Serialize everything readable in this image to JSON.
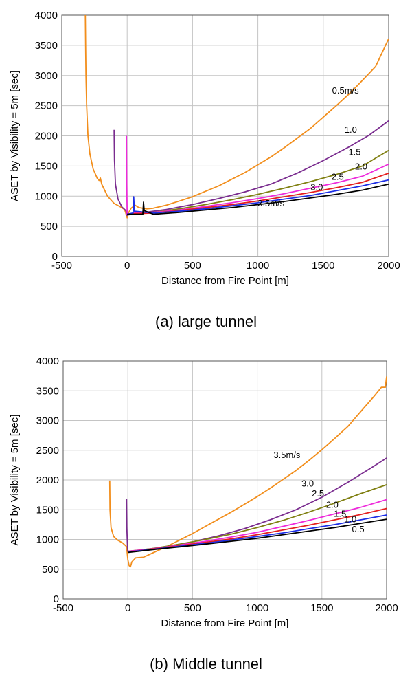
{
  "chart_data": [
    {
      "type": "line",
      "caption": "(a)  large  tunnel",
      "xlabel": "Distance from Fire Point [m]",
      "ylabel": "ASET by Visibility = 5m [sec]",
      "xlim": [
        -500,
        2000
      ],
      "ylim": [
        0,
        4000
      ],
      "xticks": [
        "-500",
        "0",
        "500",
        "1000",
        "1500",
        "2000"
      ],
      "yticks": [
        "0",
        "500",
        "1000",
        "1500",
        "2000",
        "2500",
        "3000",
        "3500",
        "4000"
      ],
      "grid": true,
      "series": [
        {
          "name": "0.5m/s",
          "color": "#f28e1c",
          "points": [
            [
              -320,
              4000
            ],
            [
              -318,
              3500
            ],
            [
              -315,
              3000
            ],
            [
              -310,
              2500
            ],
            [
              -300,
              2000
            ],
            [
              -285,
              1700
            ],
            [
              -260,
              1450
            ],
            [
              -230,
              1300
            ],
            [
              -215,
              1260
            ],
            [
              -205,
              1300
            ],
            [
              -195,
              1200
            ],
            [
              -150,
              1000
            ],
            [
              -100,
              880
            ],
            [
              -50,
              820
            ],
            [
              -20,
              780
            ],
            [
              -8,
              700
            ],
            [
              0,
              640
            ],
            [
              10,
              720
            ],
            [
              30,
              800
            ],
            [
              60,
              850
            ],
            [
              90,
              810
            ],
            [
              150,
              790
            ],
            [
              200,
              800
            ],
            [
              300,
              850
            ],
            [
              400,
              920
            ],
            [
              500,
              990
            ],
            [
              600,
              1080
            ],
            [
              700,
              1170
            ],
            [
              800,
              1280
            ],
            [
              900,
              1390
            ],
            [
              1000,
              1520
            ],
            [
              1100,
              1650
            ],
            [
              1200,
              1800
            ],
            [
              1300,
              1960
            ],
            [
              1400,
              2120
            ],
            [
              1500,
              2310
            ],
            [
              1600,
              2500
            ],
            [
              1700,
              2700
            ],
            [
              1800,
              2920
            ],
            [
              1900,
              3150
            ],
            [
              2000,
              3610
            ]
          ]
        },
        {
          "name": "1.0",
          "color": "#7a2c8f",
          "points": [
            [
              -100,
              2100
            ],
            [
              -97,
              1600
            ],
            [
              -90,
              1200
            ],
            [
              -70,
              950
            ],
            [
              -40,
              820
            ],
            [
              -10,
              760
            ],
            [
              0,
              680
            ],
            [
              20,
              700
            ],
            [
              100,
              720
            ],
            [
              300,
              780
            ],
            [
              500,
              860
            ],
            [
              700,
              960
            ],
            [
              900,
              1070
            ],
            [
              1100,
              1200
            ],
            [
              1300,
              1380
            ],
            [
              1500,
              1590
            ],
            [
              1700,
              1820
            ],
            [
              1850,
              2010
            ],
            [
              2000,
              2250
            ]
          ]
        },
        {
          "name": "1.5",
          "color": "#7f7f10",
          "points": [
            [
              0,
              690
            ],
            [
              60,
              700
            ],
            [
              200,
              730
            ],
            [
              400,
              790
            ],
            [
              600,
              860
            ],
            [
              800,
              940
            ],
            [
              1000,
              1030
            ],
            [
              1200,
              1130
            ],
            [
              1400,
              1240
            ],
            [
              1600,
              1360
            ],
            [
              1800,
              1500
            ],
            [
              2000,
              1760
            ]
          ]
        },
        {
          "name": "2.0",
          "color": "#ee2adb",
          "points": [
            [
              -5,
              2000
            ],
            [
              -3,
              1200
            ],
            [
              0,
              700
            ],
            [
              60,
              720
            ],
            [
              200,
              730
            ],
            [
              400,
              770
            ],
            [
              600,
              830
            ],
            [
              800,
              890
            ],
            [
              1000,
              960
            ],
            [
              1200,
              1040
            ],
            [
              1400,
              1130
            ],
            [
              1600,
              1220
            ],
            [
              1800,
              1330
            ],
            [
              2000,
              1530
            ]
          ]
        },
        {
          "name": "2.5",
          "color": "#e51e1e",
          "points": [
            [
              0,
              700
            ],
            [
              60,
              710
            ],
            [
              200,
              720
            ],
            [
              400,
              760
            ],
            [
              600,
              810
            ],
            [
              800,
              860
            ],
            [
              1000,
              920
            ],
            [
              1200,
              990
            ],
            [
              1400,
              1060
            ],
            [
              1600,
              1140
            ],
            [
              1800,
              1230
            ],
            [
              2000,
              1380
            ]
          ]
        },
        {
          "name": "3.0",
          "color": "#1c2ee6",
          "points": [
            [
              0,
              700
            ],
            [
              45,
              720
            ],
            [
              50,
              990
            ],
            [
              55,
              750
            ],
            [
              200,
              720
            ],
            [
              400,
              750
            ],
            [
              600,
              790
            ],
            [
              800,
              840
            ],
            [
              1000,
              890
            ],
            [
              1200,
              950
            ],
            [
              1400,
              1010
            ],
            [
              1600,
              1090
            ],
            [
              1800,
              1170
            ],
            [
              2000,
              1270
            ]
          ]
        },
        {
          "name": "3.5m/s",
          "color": "#000000",
          "points": [
            [
              0,
              700
            ],
            [
              120,
              700
            ],
            [
              125,
              900
            ],
            [
              130,
              760
            ],
            [
              200,
              700
            ],
            [
              400,
              730
            ],
            [
              600,
              770
            ],
            [
              800,
              810
            ],
            [
              1000,
              860
            ],
            [
              1200,
              910
            ],
            [
              1400,
              970
            ],
            [
              1600,
              1030
            ],
            [
              1800,
              1100
            ],
            [
              2000,
              1200
            ]
          ]
        }
      ],
      "labels": [
        {
          "text": "0.5m/s",
          "x": 1670,
          "y": 2700
        },
        {
          "text": "1.0",
          "x": 1710,
          "y": 2050
        },
        {
          "text": "1.5",
          "x": 1740,
          "y": 1680
        },
        {
          "text": "2.0",
          "x": 1790,
          "y": 1440
        },
        {
          "text": "2.5",
          "x": 1610,
          "y": 1270
        },
        {
          "text": "3.0",
          "x": 1450,
          "y": 1100
        },
        {
          "text": "3.5m/s",
          "x": 1100,
          "y": 830
        }
      ]
    },
    {
      "type": "line",
      "caption": "(b)  Middle  tunnel",
      "xlabel": "Distance from Fire Point [m]",
      "ylabel": "ASET by Visibility = 5m [sec]",
      "xlim": [
        -500,
        2000
      ],
      "ylim": [
        0,
        4000
      ],
      "xticks": [
        "-500",
        "0",
        "500",
        "1000",
        "1500",
        "2000"
      ],
      "yticks": [
        "0",
        "500",
        "1000",
        "1500",
        "2000",
        "2500",
        "3000",
        "3500",
        "4000"
      ],
      "grid": true,
      "series": [
        {
          "name": "3.5m/s",
          "color": "#f28e1c",
          "points": [
            [
              -140,
              1990
            ],
            [
              -138,
              1500
            ],
            [
              -130,
              1200
            ],
            [
              -110,
              1050
            ],
            [
              -80,
              990
            ],
            [
              -40,
              940
            ],
            [
              -10,
              880
            ],
            [
              0,
              660
            ],
            [
              10,
              560
            ],
            [
              20,
              540
            ],
            [
              30,
              620
            ],
            [
              60,
              690
            ],
            [
              120,
              700
            ],
            [
              200,
              780
            ],
            [
              300,
              880
            ],
            [
              400,
              990
            ],
            [
              500,
              1100
            ],
            [
              600,
              1220
            ],
            [
              700,
              1340
            ],
            [
              800,
              1460
            ],
            [
              900,
              1590
            ],
            [
              1000,
              1720
            ],
            [
              1100,
              1860
            ],
            [
              1200,
              2010
            ],
            [
              1300,
              2160
            ],
            [
              1400,
              2330
            ],
            [
              1500,
              2510
            ],
            [
              1600,
              2700
            ],
            [
              1700,
              2900
            ],
            [
              1800,
              3150
            ],
            [
              1900,
              3400
            ],
            [
              1960,
              3560
            ],
            [
              1990,
              3560
            ],
            [
              2000,
              3740
            ]
          ]
        },
        {
          "name": "3.0",
          "color": "#7a2c8f",
          "points": [
            [
              -10,
              1680
            ],
            [
              -8,
              1200
            ],
            [
              -3,
              900
            ],
            [
              0,
              800
            ],
            [
              100,
              820
            ],
            [
              300,
              880
            ],
            [
              500,
              960
            ],
            [
              700,
              1060
            ],
            [
              900,
              1180
            ],
            [
              1100,
              1330
            ],
            [
              1300,
              1500
            ],
            [
              1500,
              1710
            ],
            [
              1700,
              1960
            ],
            [
              1900,
              2230
            ],
            [
              2000,
              2370
            ]
          ]
        },
        {
          "name": "2.5",
          "color": "#7f7f10",
          "points": [
            [
              0,
              800
            ],
            [
              200,
              850
            ],
            [
              400,
              920
            ],
            [
              600,
              1000
            ],
            [
              800,
              1090
            ],
            [
              1000,
              1200
            ],
            [
              1200,
              1320
            ],
            [
              1400,
              1460
            ],
            [
              1600,
              1610
            ],
            [
              1800,
              1770
            ],
            [
              2000,
              1920
            ]
          ]
        },
        {
          "name": "2.0",
          "color": "#ee2adb",
          "points": [
            [
              0,
              800
            ],
            [
              200,
              845
            ],
            [
              400,
              905
            ],
            [
              600,
              970
            ],
            [
              800,
              1040
            ],
            [
              1000,
              1120
            ],
            [
              1200,
              1220
            ],
            [
              1400,
              1320
            ],
            [
              1600,
              1430
            ],
            [
              1800,
              1540
            ],
            [
              2000,
              1670
            ]
          ]
        },
        {
          "name": "1.5",
          "color": "#e51e1e",
          "points": [
            [
              0,
              790
            ],
            [
              200,
              840
            ],
            [
              400,
              895
            ],
            [
              600,
              950
            ],
            [
              800,
              1010
            ],
            [
              1000,
              1080
            ],
            [
              1200,
              1160
            ],
            [
              1400,
              1240
            ],
            [
              1600,
              1330
            ],
            [
              1800,
              1420
            ],
            [
              2000,
              1520
            ]
          ]
        },
        {
          "name": "1.0",
          "color": "#1c2ee6",
          "points": [
            [
              0,
              790
            ],
            [
              200,
              835
            ],
            [
              400,
              885
            ],
            [
              600,
              935
            ],
            [
              800,
              990
            ],
            [
              1000,
              1050
            ],
            [
              1200,
              1110
            ],
            [
              1400,
              1180
            ],
            [
              1600,
              1250
            ],
            [
              1800,
              1330
            ],
            [
              2000,
              1410
            ]
          ]
        },
        {
          "name": "0.5",
          "color": "#000000",
          "points": [
            [
              0,
              780
            ],
            [
              200,
              830
            ],
            [
              400,
              875
            ],
            [
              600,
              920
            ],
            [
              800,
              970
            ],
            [
              1000,
              1020
            ],
            [
              1200,
              1080
            ],
            [
              1400,
              1140
            ],
            [
              1600,
              1200
            ],
            [
              1800,
              1270
            ],
            [
              2000,
              1340
            ]
          ]
        }
      ],
      "labels": [
        {
          "text": "3.5m/s",
          "x": 1230,
          "y": 2370
        },
        {
          "text": "3.0",
          "x": 1390,
          "y": 1890
        },
        {
          "text": "2.5",
          "x": 1470,
          "y": 1720
        },
        {
          "text": "2.0",
          "x": 1580,
          "y": 1530
        },
        {
          "text": "1.5",
          "x": 1640,
          "y": 1380
        },
        {
          "text": "1.0",
          "x": 1720,
          "y": 1290
        },
        {
          "text": "0.5",
          "x": 1780,
          "y": 1120
        }
      ]
    }
  ]
}
